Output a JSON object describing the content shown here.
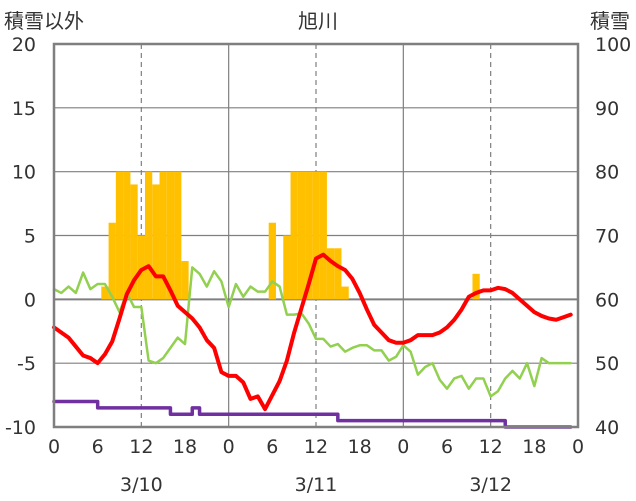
{
  "chart_data": {
    "type": "combo",
    "title": "旭川",
    "ylabel_left": "積雪以外",
    "ylabel_right": "積雪",
    "ylim_left": [
      -10,
      20
    ],
    "ylim_right": [
      40,
      100
    ],
    "yticks_left": [
      "20",
      "15",
      "10",
      "5",
      "0",
      "-5",
      "-10"
    ],
    "yticks_right": [
      "100",
      "90",
      "80",
      "70",
      "60",
      "50",
      "40"
    ],
    "xticks": [
      "0",
      "6",
      "12",
      "18",
      "0",
      "6",
      "12",
      "18",
      "0",
      "6",
      "12",
      "18",
      "0"
    ],
    "date_labels": [
      "3/10",
      "3/11",
      "3/12"
    ],
    "hours_total": 72,
    "grid": true,
    "colors": {
      "bars": "#FFC000",
      "temperature": "#FF0000",
      "green_series": "#92D050",
      "snow_depth": "#7030A0",
      "frame": "#7f7f7f",
      "grid": "#7f7f7f"
    },
    "bars": [
      {
        "hour": 7,
        "value": 1
      },
      {
        "hour": 8,
        "value": 6
      },
      {
        "hour": 9,
        "value": 10
      },
      {
        "hour": 10,
        "value": 10
      },
      {
        "hour": 11,
        "value": 9
      },
      {
        "hour": 12,
        "value": 5
      },
      {
        "hour": 13,
        "value": 10
      },
      {
        "hour": 14,
        "value": 9
      },
      {
        "hour": 15,
        "value": 10
      },
      {
        "hour": 16,
        "value": 10
      },
      {
        "hour": 17,
        "value": 10
      },
      {
        "hour": 18,
        "value": 3
      },
      {
        "hour": 30,
        "value": 6
      },
      {
        "hour": 32,
        "value": 5
      },
      {
        "hour": 33,
        "value": 10
      },
      {
        "hour": 34,
        "value": 10
      },
      {
        "hour": 35,
        "value": 10
      },
      {
        "hour": 36,
        "value": 10
      },
      {
        "hour": 37,
        "value": 10
      },
      {
        "hour": 38,
        "value": 4
      },
      {
        "hour": 39,
        "value": 4
      },
      {
        "hour": 40,
        "value": 1
      },
      {
        "hour": 58,
        "value": 2
      }
    ],
    "series": [
      {
        "key": "temperature",
        "axis": "left",
        "x": [
          0,
          1,
          2,
          3,
          4,
          5,
          6,
          7,
          8,
          9,
          10,
          11,
          12,
          13,
          14,
          15,
          16,
          17,
          18,
          19,
          20,
          21,
          22,
          23,
          24,
          25,
          26,
          27,
          28,
          29,
          30,
          31,
          32,
          33,
          34,
          35,
          36,
          37,
          38,
          39,
          40,
          41,
          42,
          43,
          44,
          45,
          46,
          47,
          48,
          49,
          50,
          51,
          52,
          53,
          54,
          55,
          56,
          57,
          58,
          59,
          60,
          61,
          62,
          63,
          64,
          65,
          66,
          67,
          68,
          69,
          70,
          71
        ],
        "values": [
          -2.2,
          -2.6,
          -3.0,
          -3.7,
          -4.4,
          -4.6,
          -5.0,
          -4.3,
          -3.3,
          -1.5,
          0.4,
          1.5,
          2.3,
          2.6,
          1.8,
          1.8,
          0.7,
          -0.5,
          -1.0,
          -1.5,
          -2.2,
          -3.2,
          -3.8,
          -5.7,
          -6.0,
          -6.0,
          -6.5,
          -7.8,
          -7.6,
          -8.6,
          -7.5,
          -6.4,
          -4.8,
          -2.6,
          -0.7,
          1.2,
          3.2,
          3.5,
          3.0,
          2.6,
          2.3,
          1.6,
          0.5,
          -0.8,
          -2.0,
          -2.6,
          -3.2,
          -3.4,
          -3.4,
          -3.2,
          -2.8,
          -2.8,
          -2.8,
          -2.6,
          -2.2,
          -1.6,
          -0.8,
          0.2,
          0.5,
          0.7,
          0.7,
          0.9,
          0.8,
          0.5,
          0.0,
          -0.5,
          -1.0,
          -1.3,
          -1.5,
          -1.6,
          -1.4,
          -1.2
        ]
      },
      {
        "key": "green_series",
        "axis": "left",
        "x": [
          0,
          1,
          2,
          3,
          4,
          5,
          6,
          7,
          8,
          9,
          10,
          11,
          12,
          13,
          14,
          15,
          16,
          17,
          18,
          19,
          20,
          21,
          22,
          23,
          24,
          25,
          26,
          27,
          28,
          29,
          30,
          31,
          32,
          33,
          34,
          35,
          36,
          37,
          38,
          39,
          40,
          41,
          42,
          43,
          44,
          45,
          46,
          47,
          48,
          49,
          50,
          51,
          52,
          53,
          54,
          55,
          56,
          57,
          58,
          59,
          60,
          61,
          62,
          63,
          64,
          65,
          66,
          67,
          68,
          69,
          70,
          71
        ],
        "values": [
          0.8,
          0.5,
          1.0,
          0.5,
          2.1,
          0.8,
          1.2,
          1.2,
          0.2,
          -1.0,
          0.5,
          -0.6,
          -0.6,
          -4.8,
          -5.0,
          -4.6,
          -3.8,
          -3.0,
          -3.5,
          2.5,
          2.0,
          1.0,
          2.2,
          1.4,
          -0.6,
          1.2,
          0.2,
          1.0,
          0.6,
          0.6,
          1.4,
          1.0,
          -1.2,
          -1.2,
          -1.1,
          -1.9,
          -3.1,
          -3.1,
          -3.7,
          -3.5,
          -4.1,
          -3.8,
          -3.6,
          -3.6,
          -4.0,
          -4.0,
          -4.8,
          -4.5,
          -3.6,
          -4.1,
          -5.9,
          -5.3,
          -5.0,
          -6.3,
          -7.0,
          -6.2,
          -6.0,
          -7.0,
          -6.2,
          -6.2,
          -7.6,
          -7.2,
          -6.2,
          -5.6,
          -6.2,
          -5.0,
          -6.8,
          -4.6,
          -5.0,
          -5.0,
          -5.0,
          -5.0
        ]
      },
      {
        "key": "snow_depth",
        "axis": "right",
        "x": [
          0,
          1,
          2,
          3,
          4,
          5,
          6,
          7,
          8,
          9,
          10,
          11,
          12,
          13,
          14,
          15,
          16,
          17,
          18,
          19,
          20,
          21,
          22,
          23,
          24,
          25,
          26,
          27,
          28,
          29,
          30,
          31,
          32,
          33,
          34,
          35,
          36,
          37,
          38,
          39,
          40,
          41,
          42,
          43,
          44,
          45,
          46,
          47,
          48,
          49,
          50,
          51,
          52,
          53,
          54,
          55,
          56,
          57,
          58,
          59,
          60,
          61,
          62,
          63,
          64,
          65,
          66,
          67,
          68,
          69,
          70,
          71
        ],
        "values": [
          44,
          44,
          44,
          44,
          44,
          44,
          43,
          43,
          43,
          43,
          43,
          43,
          43,
          43,
          43,
          43,
          42,
          42,
          42,
          43,
          42,
          42,
          42,
          42,
          42,
          42,
          42,
          42,
          42,
          42,
          42,
          42,
          42,
          42,
          42,
          42,
          42,
          42,
          42,
          41,
          41,
          41,
          41,
          41,
          41,
          41,
          41,
          41,
          41,
          41,
          41,
          41,
          41,
          41,
          41,
          41,
          41,
          41,
          41,
          41,
          41,
          41,
          40,
          40,
          40,
          40,
          40,
          40,
          40,
          40,
          40,
          40
        ]
      }
    ]
  }
}
